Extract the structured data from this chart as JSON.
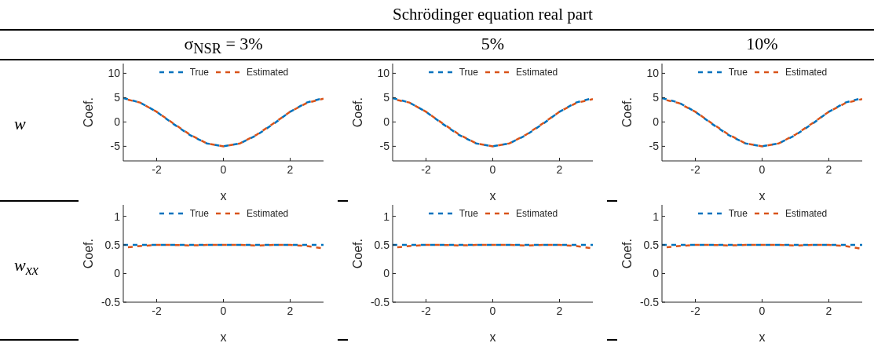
{
  "chart_data": [
    {
      "type": "line",
      "subtitle": "σ$_{NSR}$ = 3%",
      "annotations": [
        "w"
      ],
      "xlabel": "x",
      "ylabel": "Coef.",
      "x": [
        -3,
        -2.5,
        -2,
        -1.5,
        -1,
        -0.5,
        0,
        0.5,
        1,
        1.5,
        2,
        2.5,
        3
      ],
      "xlim": [
        -3,
        3
      ],
      "xticks": [
        -2,
        0,
        2
      ],
      "ylim": [
        -8,
        12
      ],
      "yticks": [
        -5,
        0,
        5,
        10
      ],
      "legend": "top",
      "line_style": "dashed",
      "series": [
        {
          "name": "True",
          "color": "#0072bd",
          "values": [
            4.9,
            4.0,
            2.1,
            -0.4,
            -2.7,
            -4.4,
            -5.0,
            -4.4,
            -2.7,
            -0.4,
            2.1,
            4.0,
            4.9
          ]
        },
        {
          "name": "Estimated",
          "color": "#d95319",
          "values": [
            4.8,
            4.0,
            2.1,
            -0.3,
            -2.6,
            -4.4,
            -5.0,
            -4.4,
            -2.6,
            -0.3,
            2.1,
            3.9,
            4.8
          ]
        }
      ]
    },
    {
      "type": "line",
      "title": "Schrödinger equation real part",
      "subtitle": "5%",
      "xlabel": "x",
      "ylabel": "Coef.",
      "x": [
        -3,
        -2.5,
        -2,
        -1.5,
        -1,
        -0.5,
        0,
        0.5,
        1,
        1.5,
        2,
        2.5,
        3
      ],
      "xlim": [
        -3,
        3
      ],
      "xticks": [
        -2,
        0,
        2
      ],
      "ylim": [
        -8,
        12
      ],
      "yticks": [
        -5,
        0,
        5,
        10
      ],
      "legend": "top",
      "line_style": "dashed",
      "series": [
        {
          "name": "True",
          "color": "#0072bd",
          "values": [
            4.9,
            4.0,
            2.1,
            -0.4,
            -2.7,
            -4.4,
            -5.0,
            -4.4,
            -2.7,
            -0.4,
            2.1,
            4.0,
            4.9
          ]
        },
        {
          "name": "Estimated",
          "color": "#d95319",
          "values": [
            4.7,
            4.0,
            2.1,
            -0.3,
            -2.6,
            -4.4,
            -5.0,
            -4.4,
            -2.6,
            -0.3,
            2.1,
            3.9,
            4.7
          ]
        }
      ]
    },
    {
      "type": "line",
      "subtitle": "10%",
      "xlabel": "x",
      "ylabel": "Coef.",
      "x": [
        -3,
        -2.5,
        -2,
        -1.5,
        -1,
        -0.5,
        0,
        0.5,
        1,
        1.5,
        2,
        2.5,
        3
      ],
      "xlim": [
        -3,
        3
      ],
      "xticks": [
        -2,
        0,
        2
      ],
      "ylim": [
        -8,
        12
      ],
      "yticks": [
        -5,
        0,
        5,
        10
      ],
      "legend": "top",
      "line_style": "dashed",
      "series": [
        {
          "name": "True",
          "color": "#0072bd",
          "values": [
            4.9,
            4.0,
            2.1,
            -0.4,
            -2.7,
            -4.4,
            -5.0,
            -4.4,
            -2.7,
            -0.4,
            2.1,
            4.0,
            4.9
          ]
        },
        {
          "name": "Estimated",
          "color": "#d95319",
          "values": [
            4.7,
            3.9,
            2.1,
            -0.3,
            -2.6,
            -4.4,
            -5.0,
            -4.4,
            -2.6,
            -0.3,
            2.1,
            3.9,
            4.7
          ]
        }
      ]
    },
    {
      "type": "line",
      "annotations": [
        "w$_{xx}$"
      ],
      "xlabel": "x",
      "ylabel": "Coef.",
      "x": [
        -3,
        -2.5,
        -2,
        -1.5,
        -1,
        -0.5,
        0,
        0.5,
        1,
        1.5,
        2,
        2.5,
        3
      ],
      "xlim": [
        -3,
        3
      ],
      "xticks": [
        -2,
        0,
        2
      ],
      "ylim": [
        -0.5,
        1.2
      ],
      "yticks": [
        -0.5,
        0,
        0.5,
        1
      ],
      "legend": "top",
      "line_style": "dashed",
      "series": [
        {
          "name": "True",
          "color": "#0072bd",
          "values": [
            0.5,
            0.5,
            0.5,
            0.5,
            0.5,
            0.5,
            0.5,
            0.5,
            0.5,
            0.5,
            0.5,
            0.5,
            0.5
          ]
        },
        {
          "name": "Estimated",
          "color": "#d95319",
          "values": [
            0.45,
            0.48,
            0.5,
            0.5,
            0.49,
            0.5,
            0.5,
            0.5,
            0.49,
            0.5,
            0.5,
            0.48,
            0.44
          ]
        }
      ]
    },
    {
      "type": "line",
      "xlabel": "x",
      "ylabel": "Coef.",
      "x": [
        -3,
        -2.5,
        -2,
        -1.5,
        -1,
        -0.5,
        0,
        0.5,
        1,
        1.5,
        2,
        2.5,
        3
      ],
      "xlim": [
        -3,
        3
      ],
      "xticks": [
        -2,
        0,
        2
      ],
      "ylim": [
        -0.5,
        1.2
      ],
      "yticks": [
        -0.5,
        0,
        0.5,
        1
      ],
      "legend": "top",
      "line_style": "dashed",
      "series": [
        {
          "name": "True",
          "color": "#0072bd",
          "values": [
            0.5,
            0.5,
            0.5,
            0.5,
            0.5,
            0.5,
            0.5,
            0.5,
            0.5,
            0.5,
            0.5,
            0.5,
            0.5
          ]
        },
        {
          "name": "Estimated",
          "color": "#d95319",
          "values": [
            0.45,
            0.48,
            0.5,
            0.5,
            0.49,
            0.5,
            0.5,
            0.5,
            0.49,
            0.5,
            0.5,
            0.48,
            0.44
          ]
        }
      ]
    },
    {
      "type": "line",
      "xlabel": "x",
      "ylabel": "Coef.",
      "x": [
        -3,
        -2.5,
        -2,
        -1.5,
        -1,
        -0.5,
        0,
        0.5,
        1,
        1.5,
        2,
        2.5,
        3
      ],
      "xlim": [
        -3,
        3
      ],
      "xticks": [
        -2,
        0,
        2
      ],
      "ylim": [
        -0.5,
        1.2
      ],
      "yticks": [
        -0.5,
        0,
        0.5,
        1
      ],
      "legend": "top",
      "line_style": "dashed",
      "series": [
        {
          "name": "True",
          "color": "#0072bd",
          "values": [
            0.5,
            0.5,
            0.5,
            0.5,
            0.5,
            0.5,
            0.5,
            0.5,
            0.5,
            0.5,
            0.5,
            0.5,
            0.5
          ]
        },
        {
          "name": "Estimated",
          "color": "#d95319",
          "values": [
            0.45,
            0.48,
            0.5,
            0.5,
            0.49,
            0.5,
            0.5,
            0.5,
            0.49,
            0.5,
            0.5,
            0.48,
            0.43
          ]
        }
      ]
    }
  ]
}
